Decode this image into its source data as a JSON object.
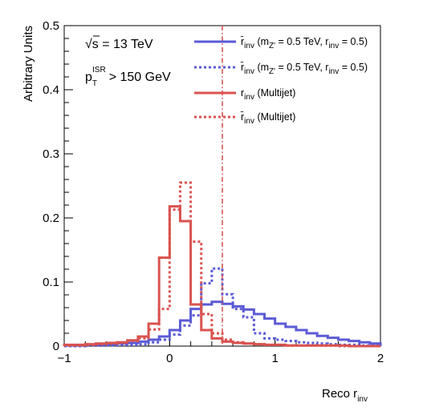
{
  "chart_data": {
    "type": "line",
    "xlabel": "Reco r",
    "xlabel_sub": "inv",
    "ylabel": "Arbitrary Units",
    "xlim": [
      -1,
      2
    ],
    "ylim": [
      0,
      0.5
    ],
    "x_ticks": [
      "−1",
      "0",
      "1",
      "2"
    ],
    "y_ticks": [
      "0",
      "0.1",
      "0.2",
      "0.3",
      "0.4",
      "0.5"
    ],
    "grid": false,
    "legend_position": "top-right",
    "annotations": {
      "energy": "√s = 13 TeV",
      "cut_main": "p",
      "cut_sub": "T",
      "cut_sup": "ISR",
      "cut_rest": "> 150 GeV"
    },
    "reference_line": {
      "x": 0.5,
      "style": "dash-dot",
      "color": "#d9534f"
    },
    "bin_edges": [
      -1.0,
      -0.9,
      -0.8,
      -0.7,
      -0.6,
      -0.5,
      -0.4,
      -0.3,
      -0.2,
      -0.1,
      0.0,
      0.1,
      0.2,
      0.3,
      0.4,
      0.5,
      0.6,
      0.7,
      0.8,
      0.9,
      1.0,
      1.1,
      1.2,
      1.3,
      1.4,
      1.5,
      1.6,
      1.7,
      1.8,
      1.9,
      2.0
    ],
    "series": [
      {
        "legend_main": "r̄",
        "legend_sub": "inv",
        "legend_rest": " (m",
        "legend_sub2": "Z'",
        "legend_rest2": " = 0.5 TeV, r",
        "legend_sub3": "inv",
        "legend_rest3": " = 0.5)",
        "color": "#5b5bd6",
        "dash": "solid",
        "values": [
          0.001,
          0.001,
          0.002,
          0.002,
          0.003,
          0.004,
          0.005,
          0.007,
          0.01,
          0.015,
          0.025,
          0.04,
          0.058,
          0.065,
          0.069,
          0.066,
          0.062,
          0.057,
          0.05,
          0.043,
          0.035,
          0.03,
          0.025,
          0.02,
          0.016,
          0.013,
          0.01,
          0.008,
          0.006,
          0.004
        ]
      },
      {
        "legend_main": "r̄",
        "legend_sub": "inv",
        "legend_rest": " (m",
        "legend_sub2": "Z'",
        "legend_rest2": " = 0.5 TeV, r",
        "legend_sub3": "inv",
        "legend_rest3": " = 0.5)",
        "color": "#5b5bd6",
        "dash": "dotted",
        "values": [
          0.0,
          0.0,
          0.001,
          0.001,
          0.001,
          0.002,
          0.002,
          0.003,
          0.006,
          0.01,
          0.018,
          0.032,
          0.048,
          0.098,
          0.121,
          0.081,
          0.058,
          0.045,
          0.02,
          0.012,
          0.01,
          0.008,
          0.006,
          0.005,
          0.004,
          0.003,
          0.002,
          0.002,
          0.001,
          0.001
        ]
      },
      {
        "legend_main": "r",
        "legend_sub": "inv",
        "legend_rest": " (Multijet)",
        "color": "#d9534f",
        "dash": "solid",
        "values": [
          0.002,
          0.002,
          0.003,
          0.004,
          0.005,
          0.006,
          0.009,
          0.015,
          0.035,
          0.138,
          0.218,
          0.195,
          0.065,
          0.025,
          0.012,
          0.007,
          0.005,
          0.004,
          0.003,
          0.002,
          0.002,
          0.001,
          0.001,
          0.001,
          0.001,
          0.001,
          0.001,
          0.0,
          0.0,
          0.0
        ]
      },
      {
        "legend_main": "r̄",
        "legend_sub": "inv",
        "legend_rest": " (Multijet)",
        "color": "#d9534f",
        "dash": "dotted",
        "values": [
          0.001,
          0.001,
          0.002,
          0.003,
          0.004,
          0.005,
          0.008,
          0.012,
          0.026,
          0.058,
          0.213,
          0.255,
          0.163,
          0.05,
          0.02,
          0.01,
          0.006,
          0.004,
          0.003,
          0.002,
          0.002,
          0.001,
          0.001,
          0.001,
          0.001,
          0.001,
          0.0,
          0.0,
          0.0,
          0.0
        ]
      }
    ]
  }
}
